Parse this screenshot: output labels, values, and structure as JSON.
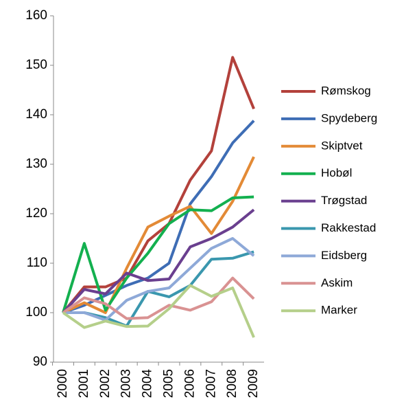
{
  "chart_data": {
    "type": "line",
    "categories": [
      "2000",
      "2001",
      "2002",
      "2003",
      "2004",
      "2005",
      "2006",
      "2007",
      "2008",
      "2009"
    ],
    "series": [
      {
        "name": "Rømskog",
        "color": "#b3413b",
        "values": [
          100,
          105.2,
          105.2,
          107,
          114.5,
          118,
          126.8,
          132.7,
          151.6,
          141.2
        ]
      },
      {
        "name": "Spydeberg",
        "color": "#3e6db5",
        "values": [
          100,
          101.5,
          103.5,
          105.5,
          107,
          110,
          122,
          127.5,
          134.3,
          138.8
        ]
      },
      {
        "name": "Skiptvet",
        "color": "#e38a36",
        "values": [
          100,
          102,
          100,
          109,
          117.3,
          119.5,
          121.5,
          116,
          122.5,
          131.5
        ]
      },
      {
        "name": "Hobøl",
        "color": "#13b04f",
        "values": [
          100,
          114,
          100.5,
          107,
          112,
          118,
          120.8,
          120.6,
          123.2,
          123.4
        ]
      },
      {
        "name": "Trøgstad",
        "color": "#6a3f8f",
        "values": [
          100,
          104.7,
          103.8,
          108,
          106.5,
          106.8,
          113.3,
          115,
          117.3,
          120.8
        ]
      },
      {
        "name": "Rakkestad",
        "color": "#3a97ae",
        "values": [
          100,
          100,
          99,
          97.3,
          104.3,
          103.2,
          105.5,
          110.8,
          111,
          112.3
        ]
      },
      {
        "name": "Eidsberg",
        "color": "#8ea9d8",
        "values": [
          100,
          100,
          98.5,
          102.5,
          104.3,
          105,
          109,
          113,
          115,
          111.5
        ]
      },
      {
        "name": "Askim",
        "color": "#d99292",
        "values": [
          100,
          103,
          101.8,
          98.8,
          99,
          101.5,
          100.5,
          102.2,
          107,
          102.8
        ]
      },
      {
        "name": "Marker",
        "color": "#b5cf8a",
        "values": [
          100,
          97,
          98.3,
          97.2,
          97.3,
          100.8,
          105.5,
          103.3,
          105,
          95
        ]
      }
    ],
    "ylim": [
      90,
      160
    ],
    "yticks": [
      90,
      100,
      110,
      120,
      130,
      140,
      150,
      160
    ],
    "grid": false,
    "legend": "right"
  }
}
